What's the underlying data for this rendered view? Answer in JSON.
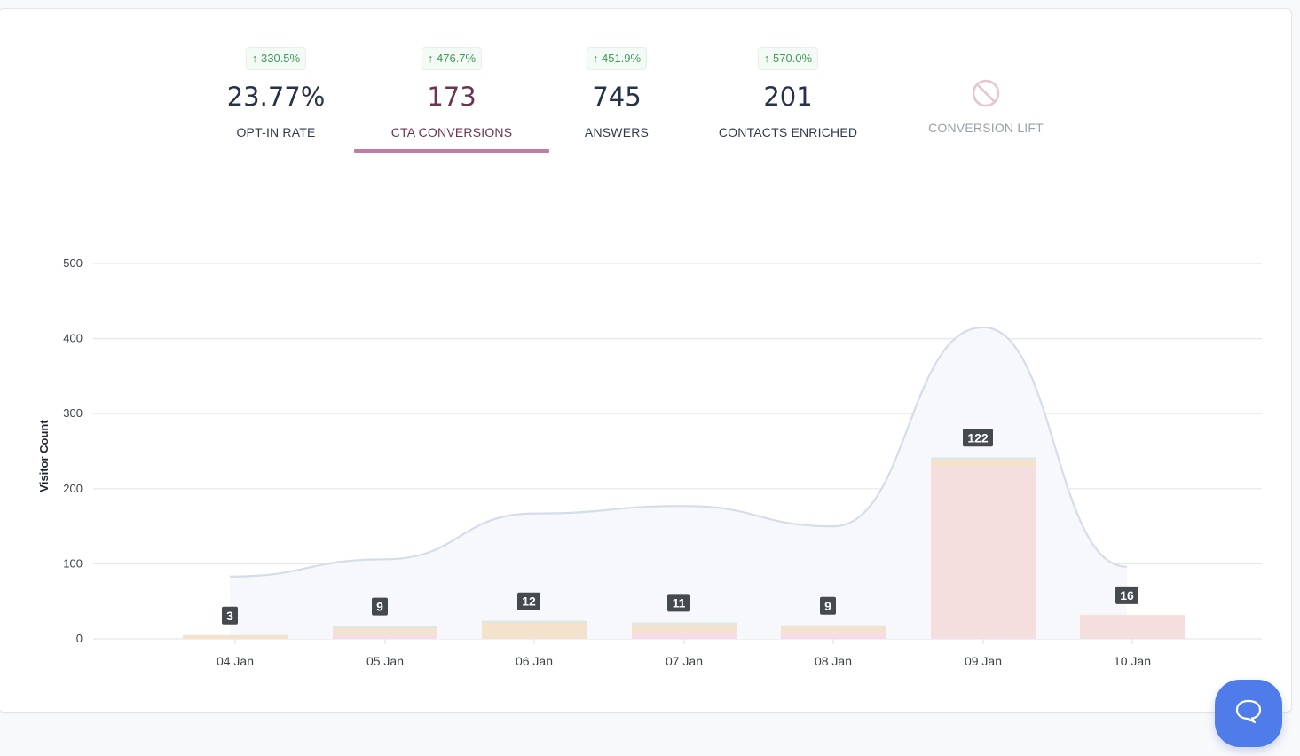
{
  "stats": [
    {
      "change": "↑ 330.5%",
      "value": "23.77%",
      "label": "OPT-IN RATE",
      "active": false
    },
    {
      "change": "↑ 476.7%",
      "value": "173",
      "label": "CTA CONVERSIONS",
      "active": true
    },
    {
      "change": "↑ 451.9%",
      "value": "745",
      "label": "ANSWERS",
      "active": false
    },
    {
      "change": "↑ 570.0%",
      "value": "201",
      "label": "CONTACTS ENRICHED",
      "active": false
    },
    {
      "label": "CONVERSION LIFT",
      "icon": "prohibited-icon",
      "disabled": true
    }
  ],
  "colors": {
    "accent": "#c27aa6",
    "active_text": "#6b3450",
    "positive": "#3f9a57",
    "help_button": "#4f7ce8"
  },
  "help_button": {
    "icon": "chat-bubble-icon"
  },
  "chart_data": {
    "type": "bar",
    "title": "",
    "xlabel": "",
    "ylabel": "Visitor Count",
    "ylim": [
      0,
      500
    ],
    "yticks": [
      0,
      100,
      200,
      300,
      400,
      500
    ],
    "grid": true,
    "categories": [
      "04 Jan",
      "05 Jan",
      "06 Jan",
      "07 Jan",
      "08 Jan",
      "09 Jan",
      "10 Jan"
    ],
    "bar_labels": [
      3,
      9,
      12,
      11,
      9,
      122,
      16
    ],
    "series": [
      {
        "name": "segment-pink",
        "kind": "stacked-bar",
        "color": "#f7dbe6",
        "values": [
          0,
          5,
          0,
          8,
          8,
          2,
          0
        ]
      },
      {
        "name": "segment-red",
        "kind": "stacked-bar",
        "color": "#f5dede",
        "values": [
          0,
          0,
          0,
          0,
          0,
          228,
          31
        ]
      },
      {
        "name": "segment-peach",
        "kind": "stacked-bar",
        "color": "#f4e2cc",
        "values": [
          5,
          9,
          22,
          11,
          8,
          9,
          1
        ]
      },
      {
        "name": "segment-blue",
        "kind": "stacked-bar",
        "color": "#d6e6ec",
        "values": [
          0,
          2,
          2,
          2,
          2,
          2,
          0
        ]
      },
      {
        "name": "segment-green",
        "kind": "stacked-bar",
        "color": "#e4eedb",
        "values": [
          0,
          1,
          0,
          1,
          0,
          1,
          0
        ]
      },
      {
        "name": "visitors",
        "kind": "area",
        "color": "#d5dde9",
        "fill": "#f6f8fb",
        "values": [
          83,
          106,
          167,
          177,
          150,
          415,
          96
        ]
      }
    ]
  }
}
